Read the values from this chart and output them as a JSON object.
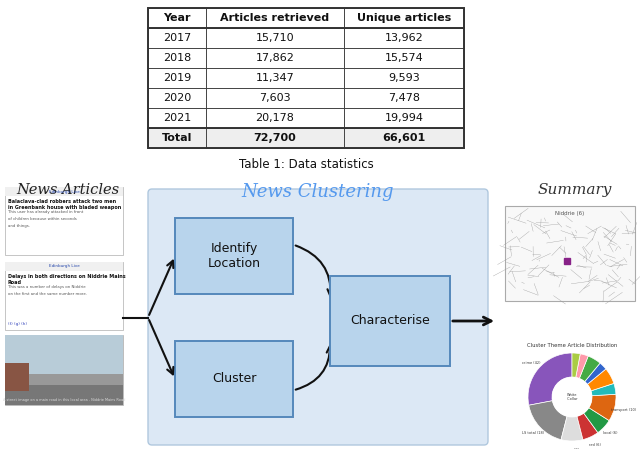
{
  "table": {
    "headers": [
      "Year",
      "Articles retrieved",
      "Unique articles"
    ],
    "rows": [
      [
        "2017",
        "15,710",
        "13,962"
      ],
      [
        "2018",
        "17,862",
        "15,574"
      ],
      [
        "2019",
        "11,347",
        "9,593"
      ],
      [
        "2020",
        "7,603",
        "7,478"
      ],
      [
        "2021",
        "20,178",
        "19,994"
      ],
      [
        "Total",
        "72,700",
        "66,601"
      ]
    ],
    "caption": "Table 1: Data statistics"
  },
  "section_labels": {
    "news_articles": "News Articles",
    "news_clustering": "News Clustering",
    "summary": "Summary"
  },
  "boxes": {
    "identify_location": "Identify\nLocation",
    "cluster": "Cluster",
    "characterise": "Characterise"
  },
  "colors": {
    "background": "#ffffff",
    "cluster_panel_bg": "#dce8f5",
    "cluster_panel_border": "#b8cfe0",
    "box_bg_gradient_top": "#c8ddf0",
    "box_bg": "#b8d4ec",
    "box_border": "#6699bb",
    "news_clustering_color": "#5599ee",
    "arrow_color": "#111111",
    "map_bg": "#f8f8f8",
    "map_border": "#bbbbbb",
    "donut_colors": [
      "#8855bb",
      "#888888",
      "#dddddd",
      "#cc3333",
      "#229944",
      "#dd6611",
      "#22bbbb",
      "#ff8800",
      "#3366cc",
      "#44aa44",
      "#ff99aa",
      "#aacc44"
    ],
    "donut_sizes": [
      28,
      18,
      8,
      6,
      6,
      10,
      4,
      6,
      3,
      5,
      3,
      3
    ]
  }
}
